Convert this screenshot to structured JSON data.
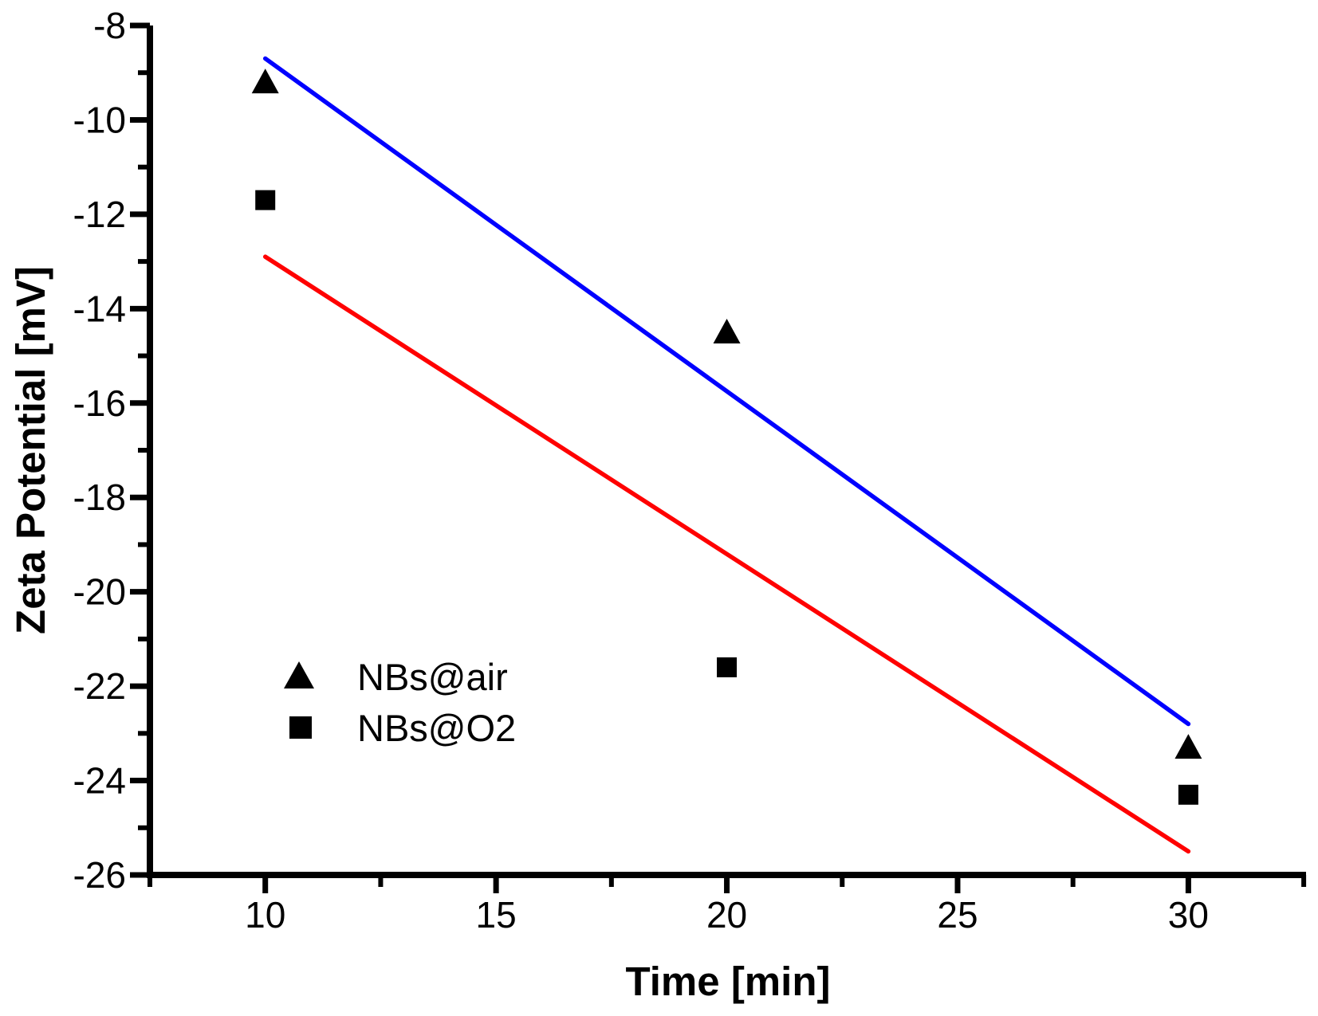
{
  "chart_data": {
    "type": "scatter",
    "title": "",
    "xlabel": "Time [min]",
    "ylabel": "Zeta Potential [mV]",
    "xlim": [
      7.5,
      32.55
    ],
    "ylim": [
      -26,
      -8
    ],
    "grid": false,
    "x_major_ticks": [
      10,
      15,
      20,
      25,
      30
    ],
    "x_major_tick_labels": [
      "10",
      "15",
      "20",
      "25",
      "30"
    ],
    "x_minor_ticks": [
      7.5,
      12.5,
      17.5,
      22.5,
      27.5,
      32.5
    ],
    "y_major_ticks": [
      -8,
      -10,
      -12,
      -14,
      -16,
      -18,
      -20,
      -22,
      -24,
      -26
    ],
    "y_major_tick_labels": [
      "-8",
      "-10",
      "-12",
      "-14",
      "-16",
      "-18",
      "-20",
      "-22",
      "-24",
      "-26"
    ],
    "y_minor_ticks": [
      -9,
      -11,
      -13,
      -15,
      -17,
      -19,
      -21,
      -23,
      -25
    ],
    "series": [
      {
        "name": "NBs@air",
        "marker": "triangle",
        "marker_color": "#000000",
        "points": [
          [
            10,
            -9.2
          ],
          [
            20,
            -14.5
          ],
          [
            30,
            -23.3
          ]
        ]
      },
      {
        "name": "NBs@O2",
        "marker": "square",
        "marker_color": "#000000",
        "points": [
          [
            10,
            -11.7
          ],
          [
            20,
            -21.6
          ],
          [
            30,
            -24.3
          ]
        ]
      }
    ],
    "fit_lines": [
      {
        "name": "NBs@air linear fit",
        "color": "#0000ff",
        "from": [
          10,
          -8.7
        ],
        "to": [
          30,
          -22.8
        ]
      },
      {
        "name": "NBs@O2 linear fit",
        "color": "#ff0000",
        "from": [
          10,
          -12.9
        ],
        "to": [
          30,
          -25.5
        ]
      }
    ],
    "legend": {
      "position": "inside-lower-left",
      "items": [
        {
          "label": "NBs@air",
          "marker": "triangle"
        },
        {
          "label": "NBs@O2",
          "marker": "square"
        }
      ]
    },
    "colors": {
      "axis": "#000000",
      "marker": "#000000",
      "air_fit": "#0000ff",
      "o2_fit": "#ff0000",
      "background": "#ffffff"
    }
  }
}
